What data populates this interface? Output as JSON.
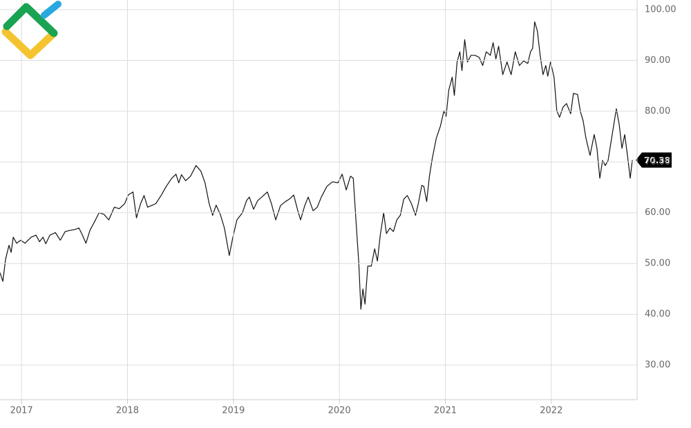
{
  "chart_data": {
    "type": "line",
    "x": [
      2016.797,
      2016.824,
      2016.85,
      2016.882,
      2016.902,
      2016.922,
      2016.954,
      2016.993,
      2017.033,
      2017.092,
      2017.137,
      2017.17,
      2017.203,
      2017.229,
      2017.268,
      2017.32,
      2017.366,
      2017.412,
      2017.451,
      2017.503,
      2017.542,
      2017.575,
      2017.608,
      2017.647,
      2017.686,
      2017.732,
      2017.778,
      2017.824,
      2017.876,
      2017.922,
      2017.974,
      2018.007,
      2018.052,
      2018.085,
      2018.124,
      2018.157,
      2018.19,
      2018.235,
      2018.268,
      2018.32,
      2018.366,
      2018.418,
      2018.458,
      2018.484,
      2018.51,
      2018.549,
      2018.595,
      2018.647,
      2018.693,
      2018.732,
      2018.771,
      2018.804,
      2018.837,
      2018.876,
      2018.915,
      2018.961,
      2018.993,
      2019.033,
      2019.085,
      2019.124,
      2019.15,
      2019.19,
      2019.229,
      2019.268,
      2019.32,
      2019.359,
      2019.399,
      2019.444,
      2019.49,
      2019.529,
      2019.569,
      2019.608,
      2019.634,
      2019.673,
      2019.706,
      2019.752,
      2019.791,
      2019.83,
      2019.882,
      2019.935,
      2019.987,
      2020.026,
      2020.065,
      2020.105,
      2020.131,
      2020.157,
      2020.183,
      2020.203,
      2020.222,
      2020.242,
      2020.268,
      2020.301,
      2020.333,
      2020.359,
      2020.386,
      2020.418,
      2020.444,
      2020.477,
      2020.51,
      2020.542,
      2020.575,
      2020.608,
      2020.641,
      2020.68,
      2020.719,
      2020.745,
      2020.778,
      2020.797,
      2020.824,
      2020.85,
      2020.876,
      2020.915,
      2020.954,
      2020.987,
      2021.007,
      2021.033,
      2021.065,
      2021.085,
      2021.111,
      2021.137,
      2021.157,
      2021.183,
      2021.209,
      2021.242,
      2021.281,
      2021.32,
      2021.353,
      2021.386,
      2021.425,
      2021.451,
      2021.477,
      2021.503,
      2021.542,
      2021.582,
      2021.621,
      2021.66,
      2021.699,
      2021.739,
      2021.778,
      2021.804,
      2021.824,
      2021.843,
      2021.869,
      2021.895,
      2021.922,
      2021.948,
      2021.967,
      2021.993,
      2022.026,
      2022.052,
      2022.078,
      2022.111,
      2022.144,
      2022.183,
      2022.209,
      2022.248,
      2022.275,
      2022.301,
      2022.327,
      2022.366,
      2022.405,
      2022.431,
      2022.458,
      2022.484,
      2022.51,
      2022.536,
      2022.575,
      2022.614,
      2022.641,
      2022.667,
      2022.693,
      2022.719,
      2022.745,
      2022.765
    ],
    "series": [
      {
        "color": "#111111",
        "values": [
          48.2,
          46.5,
          50.9,
          53.6,
          52.2,
          55.2,
          54.0,
          54.6,
          54.0,
          55.2,
          55.6,
          54.3,
          55.2,
          53.9,
          55.6,
          56.1,
          54.6,
          56.3,
          56.5,
          56.7,
          57.0,
          55.6,
          54.0,
          56.6,
          58.1,
          60.0,
          59.7,
          58.6,
          61.1,
          60.8,
          61.8,
          63.5,
          64.1,
          59.0,
          61.8,
          63.4,
          61.1,
          61.5,
          61.8,
          63.5,
          65.2,
          66.8,
          67.6,
          65.9,
          67.5,
          66.3,
          67.2,
          69.3,
          68.2,
          65.9,
          61.8,
          59.5,
          61.5,
          59.7,
          57.0,
          51.6,
          55.0,
          58.6,
          60.0,
          62.4,
          63.1,
          60.7,
          62.4,
          63.1,
          64.1,
          61.8,
          58.6,
          61.4,
          62.2,
          62.7,
          63.5,
          60.4,
          58.6,
          61.4,
          63.1,
          60.4,
          61.1,
          63.1,
          65.2,
          66.1,
          65.9,
          67.6,
          64.5,
          67.2,
          66.8,
          58.4,
          50.2,
          41.0,
          45.0,
          42.0,
          49.5,
          49.5,
          52.9,
          50.5,
          55.6,
          60.0,
          55.9,
          57.0,
          56.3,
          58.6,
          59.5,
          62.7,
          63.4,
          61.8,
          59.5,
          61.8,
          65.4,
          65.2,
          62.2,
          67.2,
          70.6,
          74.7,
          77.1,
          80.1,
          79.0,
          84.2,
          86.7,
          83.1,
          89.7,
          91.7,
          88.0,
          94.1,
          89.7,
          91.0,
          91.0,
          90.6,
          89.0,
          91.7,
          91.0,
          93.5,
          90.3,
          92.8,
          87.2,
          89.7,
          87.2,
          91.7,
          89.0,
          89.9,
          89.4,
          91.7,
          92.4,
          97.6,
          95.8,
          91.0,
          87.2,
          89.0,
          86.9,
          89.7,
          86.7,
          80.1,
          78.8,
          80.8,
          81.5,
          79.5,
          83.5,
          83.3,
          79.9,
          78.1,
          74.7,
          71.3,
          75.4,
          72.7,
          66.8,
          70.3,
          69.3,
          70.3,
          75.4,
          80.5,
          77.4,
          72.7,
          75.4,
          71.3,
          66.8,
          70.38
        ]
      }
    ],
    "xlim": [
      2016.797,
      2022.81
    ],
    "xticks": [
      2017,
      2018,
      2019,
      2020,
      2021,
      2022
    ],
    "ylim": [
      23.2,
      101.9
    ],
    "yticks": [
      {
        "value": 30,
        "label": "30.00"
      },
      {
        "value": 40,
        "label": "40.00"
      },
      {
        "value": 50,
        "label": "50.00"
      },
      {
        "value": 60,
        "label": "60.00"
      },
      {
        "value": 70,
        "label": "70.00"
      },
      {
        "value": 80,
        "label": "80.00"
      },
      {
        "value": 90,
        "label": "90.00"
      },
      {
        "value": 100,
        "label": "100.00"
      }
    ],
    "grid": true
  }
}
